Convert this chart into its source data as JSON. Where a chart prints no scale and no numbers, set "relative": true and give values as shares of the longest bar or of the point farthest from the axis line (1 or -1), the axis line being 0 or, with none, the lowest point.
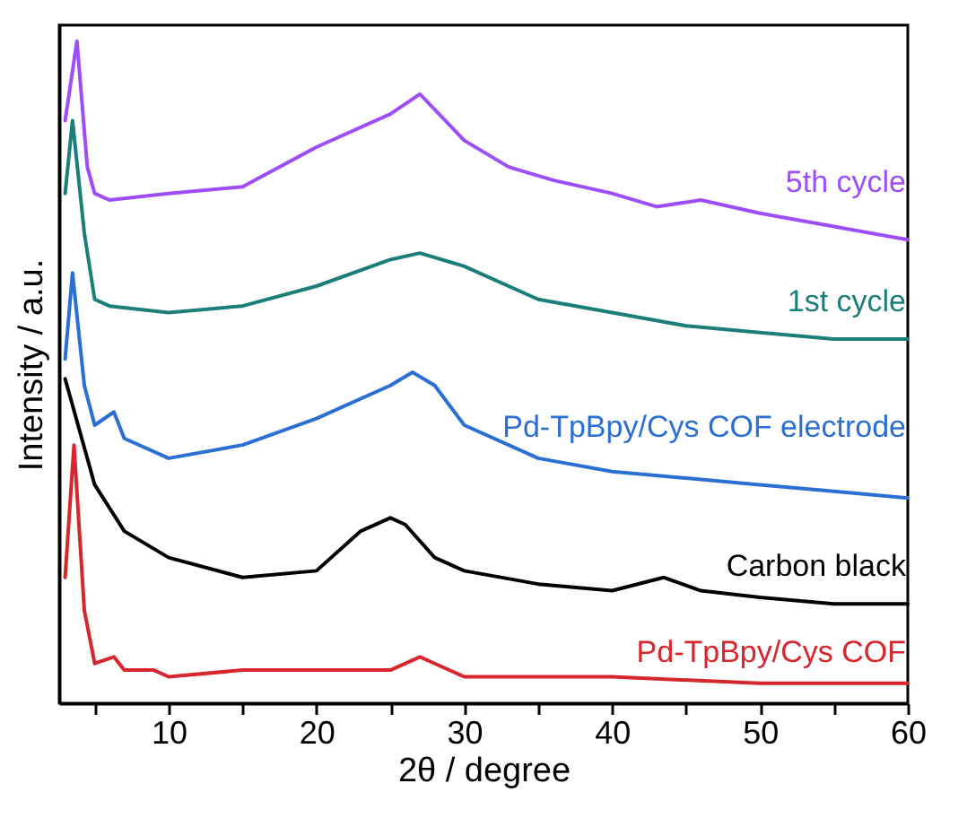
{
  "chart_data": {
    "type": "line",
    "relative": true,
    "xlabel": "2θ / degree",
    "ylabel": "Intensity / a.u.",
    "xlim": [
      2.6,
      60
    ],
    "xticks": [
      {
        "value": 5,
        "label": null
      },
      10,
      {
        "value": 15,
        "label": null
      },
      20,
      {
        "value": 25,
        "label": null
      },
      30,
      {
        "value": 35,
        "label": null
      },
      40,
      {
        "value": 45,
        "label": null
      },
      50,
      {
        "value": 55,
        "label": null
      },
      60
    ],
    "grid": false,
    "tick_labels": "x",
    "marker": "none",
    "line_style": "solid",
    "series": [
      {
        "name": "5th cycle",
        "color": "#9d4dfa",
        "x": [
          3,
          3.8,
          4.5,
          5,
          6,
          10,
          15,
          20,
          25,
          27,
          30,
          33,
          36,
          40,
          43,
          46,
          50,
          55,
          60
        ],
        "values": [
          0.88,
          1.0,
          0.81,
          0.77,
          0.76,
          0.77,
          0.78,
          0.84,
          0.89,
          0.92,
          0.85,
          0.81,
          0.79,
          0.77,
          0.75,
          0.76,
          0.74,
          0.72,
          0.7
        ]
      },
      {
        "name": "1st cycle",
        "color": "#1b7f78",
        "x": [
          3,
          3.5,
          4.3,
          5,
          6,
          10,
          15,
          20,
          25,
          27,
          30,
          35,
          40,
          45,
          50,
          55,
          60
        ],
        "values": [
          0.77,
          0.88,
          0.71,
          0.61,
          0.6,
          0.59,
          0.6,
          0.63,
          0.67,
          0.68,
          0.66,
          0.61,
          0.59,
          0.57,
          0.56,
          0.55,
          0.55
        ]
      },
      {
        "name": "Pd-TpBpy/Cys COF electrode",
        "color": "#2b6fd4",
        "x": [
          3,
          3.5,
          4.3,
          5,
          6.3,
          7,
          10,
          15,
          20,
          25,
          26.5,
          28,
          30,
          35,
          40,
          45,
          50,
          55,
          60
        ],
        "values": [
          0.52,
          0.65,
          0.48,
          0.42,
          0.44,
          0.4,
          0.37,
          0.39,
          0.43,
          0.48,
          0.5,
          0.48,
          0.42,
          0.37,
          0.35,
          0.34,
          0.33,
          0.32,
          0.31
        ]
      },
      {
        "name": "Carbon black",
        "color": "#000000",
        "x": [
          3,
          5,
          7,
          10,
          15,
          20,
          23,
          25,
          26,
          28,
          30,
          35,
          40,
          43.5,
          46,
          50,
          55,
          60
        ],
        "values": [
          0.49,
          0.33,
          0.26,
          0.22,
          0.19,
          0.2,
          0.26,
          0.28,
          0.27,
          0.22,
          0.2,
          0.18,
          0.17,
          0.19,
          0.17,
          0.16,
          0.15,
          0.15
        ]
      },
      {
        "name": "Pd-TpBpy/Cys COF",
        "color": "#d7262c",
        "x": [
          3,
          3.6,
          4.3,
          5,
          6.3,
          7,
          9,
          10,
          15,
          20,
          25,
          27,
          28,
          30,
          40,
          50,
          60
        ],
        "values": [
          0.19,
          0.39,
          0.14,
          0.06,
          0.07,
          0.05,
          0.05,
          0.04,
          0.05,
          0.05,
          0.05,
          0.07,
          0.06,
          0.04,
          0.04,
          0.03,
          0.03
        ]
      }
    ]
  }
}
